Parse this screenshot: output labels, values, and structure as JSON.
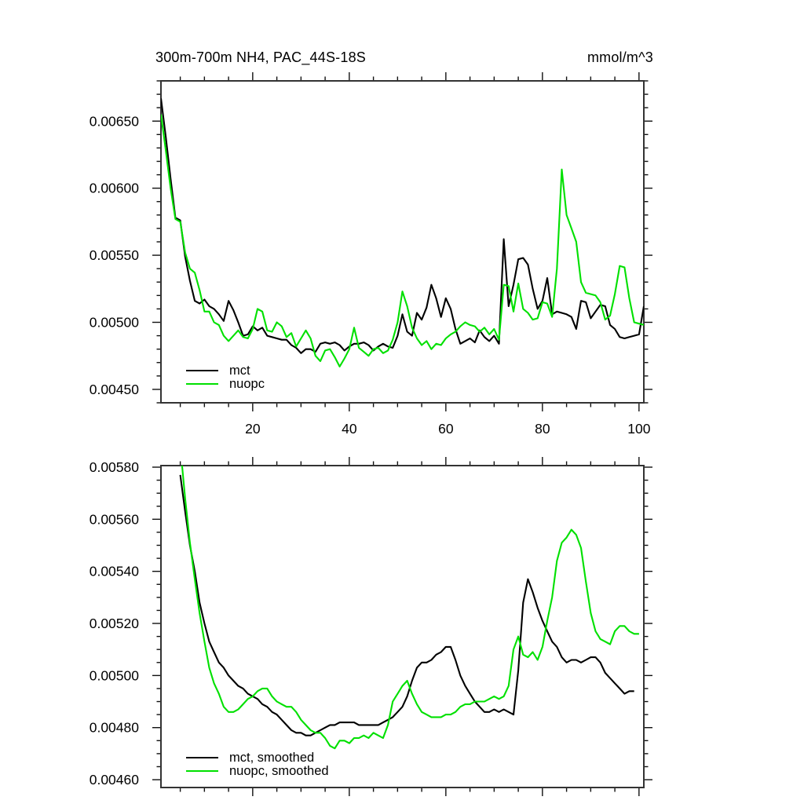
{
  "figure": {
    "title": "300m-700m NH4, PAC_44S-18S",
    "units": "mmol/m^3"
  },
  "colors": {
    "mct": "#000000",
    "nuopc": "#00e000",
    "frame": "#333333",
    "tick": "#111111",
    "text": "#000000"
  },
  "chart_data": [
    {
      "id": "top",
      "type": "line",
      "title": "300m-700m NH4, PAC_44S-18S",
      "units_label": "mmol/m^3",
      "grid": false,
      "legend_position": "lower-left-inside",
      "x_axis": {
        "min": 1,
        "max": 101,
        "major_ticks": [
          20,
          40,
          60,
          80,
          100
        ],
        "tick_labels": [
          "20",
          "40",
          "60",
          "80",
          "100"
        ],
        "minor_step": 5,
        "show_tick_labels": true
      },
      "y_axis": {
        "min": 0.0044,
        "max": 0.0068,
        "major_ticks": [
          0.0045,
          0.005,
          0.0055,
          0.006,
          0.0065
        ],
        "tick_labels": [
          "0.00450",
          "0.00500",
          "0.00550",
          "0.00600",
          "0.00650"
        ],
        "minor_step": 0.0001
      },
      "legend": [
        {
          "label": "mct",
          "color": "#000000"
        },
        {
          "label": "nuopc",
          "color": "#00e000"
        }
      ],
      "series": [
        {
          "name": "mct",
          "color": "#000000",
          "x_start": 1,
          "values": [
            0.00667,
            0.00638,
            0.00607,
            0.00578,
            0.00576,
            0.00549,
            0.00531,
            0.00516,
            0.00514,
            0.00517,
            0.00512,
            0.0051,
            0.00506,
            0.00501,
            0.00516,
            0.00509,
            0.005,
            0.0049,
            0.00491,
            0.00497,
            0.00494,
            0.00496,
            0.0049,
            0.00489,
            0.00488,
            0.00487,
            0.00487,
            0.00483,
            0.00481,
            0.00477,
            0.0048,
            0.0048,
            0.00478,
            0.00484,
            0.00485,
            0.00484,
            0.00485,
            0.00483,
            0.00479,
            0.00482,
            0.00484,
            0.00484,
            0.00485,
            0.00483,
            0.00479,
            0.00482,
            0.00484,
            0.00482,
            0.00481,
            0.0049,
            0.00506,
            0.00493,
            0.0049,
            0.00507,
            0.00502,
            0.00511,
            0.00528,
            0.00518,
            0.00504,
            0.00518,
            0.0051,
            0.00495,
            0.00484,
            0.00486,
            0.00488,
            0.00485,
            0.00494,
            0.00489,
            0.00486,
            0.0049,
            0.00484,
            0.00562,
            0.00512,
            0.00528,
            0.00547,
            0.00548,
            0.00543,
            0.00525,
            0.0051,
            0.00516,
            0.00533,
            0.00506,
            0.00508,
            0.00507,
            0.00506,
            0.00504,
            0.00495,
            0.00516,
            0.00515,
            0.00503,
            0.00508,
            0.00513,
            0.00512,
            0.00498,
            0.00495,
            0.00489,
            0.00488,
            0.00489,
            0.0049,
            0.00491,
            0.00512
          ]
        },
        {
          "name": "nuopc",
          "color": "#00e000",
          "x_start": 1,
          "values": [
            0.00655,
            0.00628,
            0.006,
            0.00577,
            0.00575,
            0.00552,
            0.0054,
            0.00537,
            0.00524,
            0.00508,
            0.00508,
            0.005,
            0.00498,
            0.0049,
            0.00486,
            0.0049,
            0.00494,
            0.00489,
            0.00488,
            0.00495,
            0.0051,
            0.00508,
            0.00494,
            0.00493,
            0.005,
            0.00497,
            0.00489,
            0.00492,
            0.00482,
            0.00488,
            0.00494,
            0.00488,
            0.00475,
            0.00471,
            0.00479,
            0.0048,
            0.00474,
            0.00467,
            0.00473,
            0.0048,
            0.00496,
            0.00481,
            0.00478,
            0.00475,
            0.0048,
            0.00481,
            0.00477,
            0.00479,
            0.00487,
            0.005,
            0.00523,
            0.00512,
            0.00496,
            0.00488,
            0.00483,
            0.00486,
            0.0048,
            0.00484,
            0.00483,
            0.00488,
            0.00491,
            0.00493,
            0.00497,
            0.005,
            0.00498,
            0.00497,
            0.00493,
            0.00496,
            0.00491,
            0.00495,
            0.00487,
            0.00528,
            0.00527,
            0.00508,
            0.00529,
            0.0051,
            0.00507,
            0.00502,
            0.00503,
            0.00515,
            0.00514,
            0.00504,
            0.0054,
            0.00614,
            0.0058,
            0.0057,
            0.0056,
            0.0053,
            0.00522,
            0.00521,
            0.0052,
            0.00515,
            0.00502,
            0.00505,
            0.00521,
            0.00542,
            0.00541,
            0.00518,
            0.005,
            0.00499,
            0.00498
          ]
        }
      ]
    },
    {
      "id": "bottom",
      "type": "line",
      "title": "",
      "units_label": "",
      "grid": false,
      "legend_position": "lower-left-inside",
      "x_axis": {
        "min": 1,
        "max": 101,
        "major_ticks": [
          20,
          40,
          60,
          80,
          100
        ],
        "tick_labels": [],
        "minor_step": 5,
        "show_tick_labels": false
      },
      "y_axis": {
        "min": 0.00457,
        "max": 0.005806,
        "major_ticks": [
          0.0046,
          0.0048,
          0.005,
          0.0052,
          0.0054,
          0.0056,
          0.0058
        ],
        "tick_labels": [
          "0.00460",
          "0.00480",
          "0.00500",
          "0.00520",
          "0.00540",
          "0.00560",
          "0.00580"
        ],
        "minor_step": 5e-05
      },
      "legend": [
        {
          "label": "mct, smoothed",
          "color": "#000000"
        },
        {
          "label": "nuopc, smoothed",
          "color": "#00e000"
        }
      ],
      "series": [
        {
          "name": "mct, smoothed",
          "color": "#000000",
          "x_start": 5,
          "values": [
            0.00577,
            0.00563,
            0.0055,
            0.0054,
            0.00528,
            0.0052,
            0.00513,
            0.00509,
            0.00505,
            0.00503,
            0.005,
            0.00498,
            0.00496,
            0.00495,
            0.00493,
            0.00492,
            0.00491,
            0.00489,
            0.00488,
            0.00486,
            0.00485,
            0.00483,
            0.00481,
            0.00479,
            0.00478,
            0.00478,
            0.00477,
            0.00477,
            0.00478,
            0.00479,
            0.0048,
            0.00481,
            0.00481,
            0.00482,
            0.00482,
            0.00482,
            0.00482,
            0.00481,
            0.00481,
            0.00481,
            0.00481,
            0.00481,
            0.00482,
            0.00483,
            0.00484,
            0.00486,
            0.00488,
            0.00492,
            0.00498,
            0.00503,
            0.00505,
            0.00505,
            0.00506,
            0.00508,
            0.00509,
            0.00511,
            0.00511,
            0.00506,
            0.005,
            0.00496,
            0.00493,
            0.0049,
            0.00488,
            0.00486,
            0.00486,
            0.00487,
            0.00486,
            0.00487,
            0.00486,
            0.00485,
            0.00502,
            0.00528,
            0.00537,
            0.00532,
            0.00526,
            0.00521,
            0.00517,
            0.00513,
            0.00511,
            0.00507,
            0.00505,
            0.00506,
            0.00506,
            0.00505,
            0.00506,
            0.00507,
            0.00507,
            0.00505,
            0.00501,
            0.00499,
            0.00497,
            0.00495,
            0.00493,
            0.00494,
            0.00494
          ]
        },
        {
          "name": "nuopc, smoothed",
          "color": "#00e000",
          "x_start": 5,
          "values": [
            0.00588,
            0.00568,
            0.00551,
            0.00537,
            0.00524,
            0.00513,
            0.00503,
            0.00497,
            0.00493,
            0.00488,
            0.00486,
            0.00486,
            0.00487,
            0.00489,
            0.00491,
            0.00492,
            0.00494,
            0.00495,
            0.00495,
            0.00492,
            0.0049,
            0.00489,
            0.00488,
            0.00488,
            0.00486,
            0.00483,
            0.00481,
            0.00479,
            0.00478,
            0.00478,
            0.00476,
            0.00473,
            0.00472,
            0.00475,
            0.00475,
            0.00474,
            0.00476,
            0.00476,
            0.00477,
            0.00476,
            0.00478,
            0.00477,
            0.00476,
            0.00481,
            0.0049,
            0.00493,
            0.00496,
            0.00498,
            0.00493,
            0.00489,
            0.00486,
            0.00485,
            0.00484,
            0.00484,
            0.00484,
            0.00485,
            0.00485,
            0.00486,
            0.00488,
            0.00489,
            0.00489,
            0.0049,
            0.0049,
            0.0049,
            0.00491,
            0.00492,
            0.00491,
            0.00492,
            0.00496,
            0.0051,
            0.00515,
            0.00508,
            0.00507,
            0.00509,
            0.00506,
            0.00511,
            0.00521,
            0.0053,
            0.00544,
            0.00551,
            0.00553,
            0.00556,
            0.00554,
            0.00549,
            0.00536,
            0.00524,
            0.00517,
            0.00514,
            0.00513,
            0.00512,
            0.00517,
            0.00519,
            0.00519,
            0.00517,
            0.00516,
            0.00516
          ]
        }
      ]
    }
  ]
}
